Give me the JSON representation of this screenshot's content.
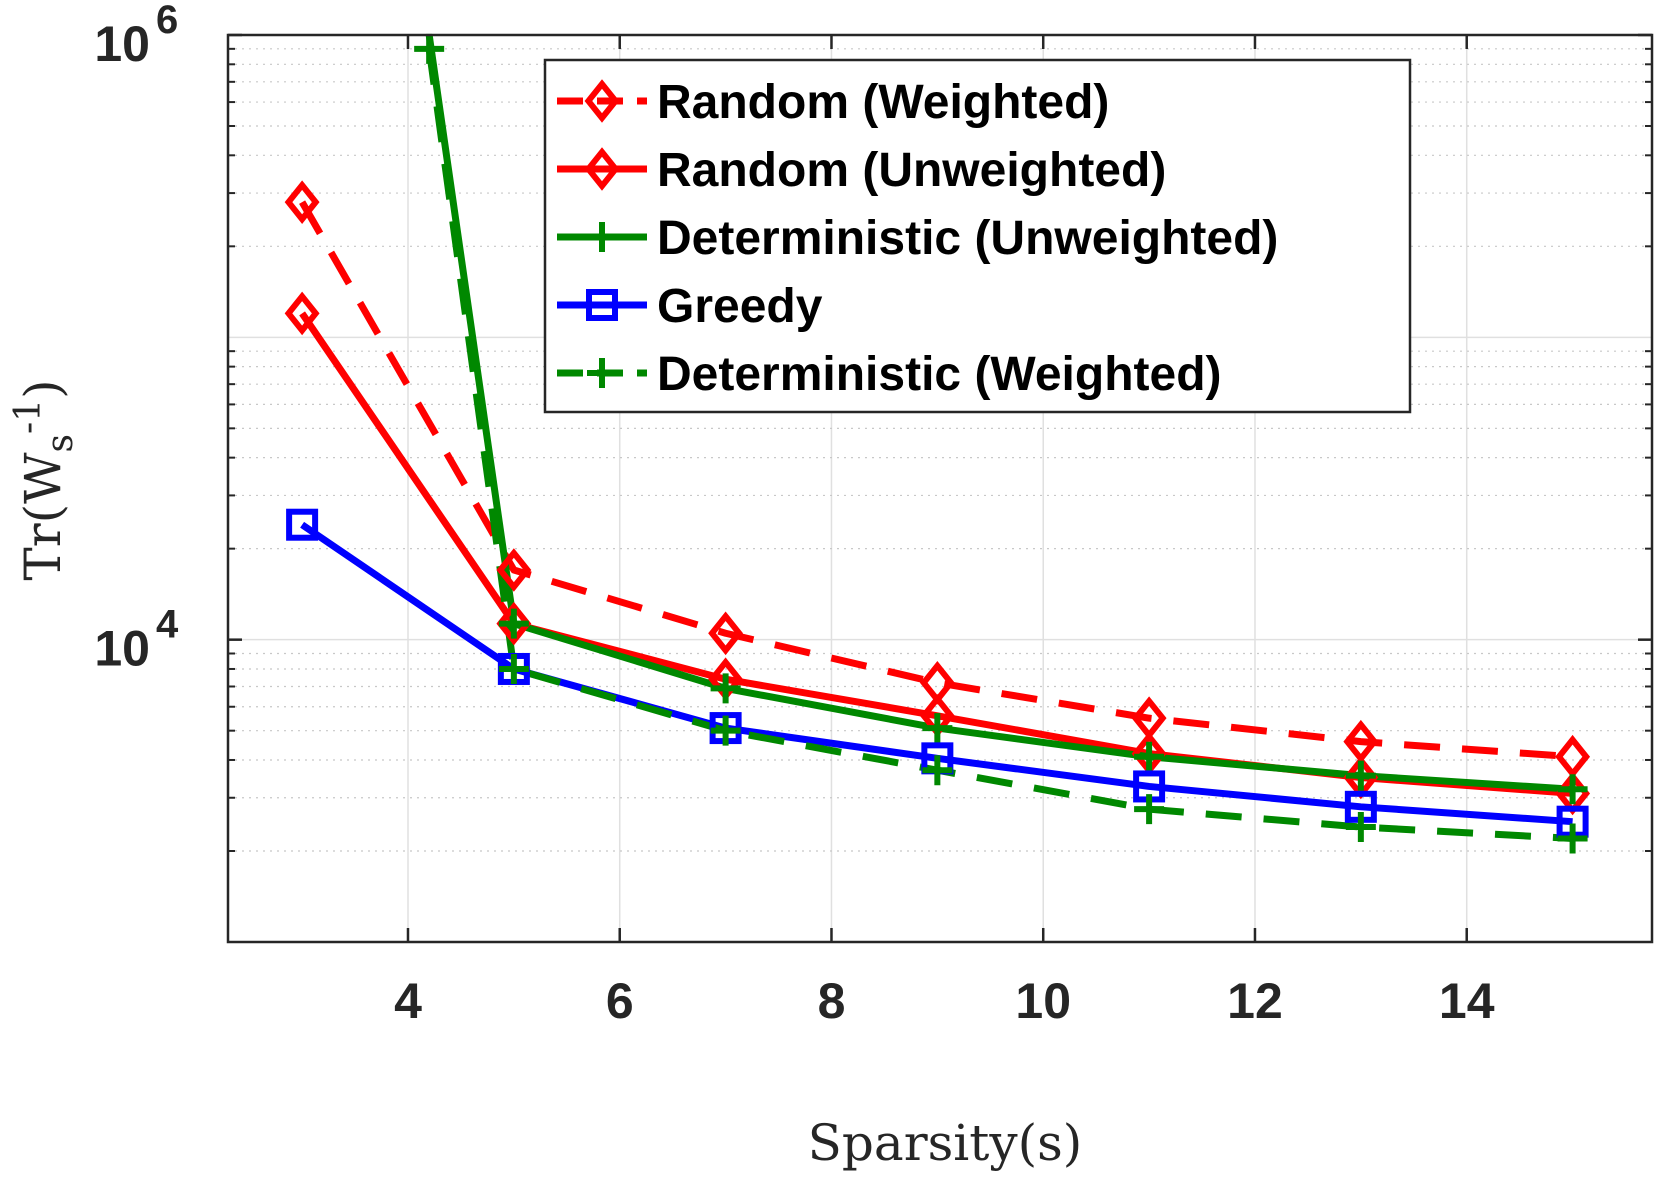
{
  "chart_data": {
    "type": "line",
    "xlabel": "Sparsity(s)",
    "ylabel": "Tr(W_s^{-1})",
    "xlim": [
      2.3,
      15.75
    ],
    "ylim": [
      1000,
      1000000
    ],
    "y_scale": "log",
    "x_ticks": [
      4,
      6,
      8,
      10,
      12,
      14
    ],
    "x_tick_labels": [
      "4",
      "6",
      "8",
      "10",
      "12",
      "14"
    ],
    "y_tick_labels": [
      {
        "value": 1000000,
        "base": "10",
        "exp": "6"
      },
      {
        "value": 10000,
        "base": "10",
        "exp": "4"
      }
    ],
    "grid": true,
    "minor_grid": true,
    "legend_position": "top-right",
    "series": [
      {
        "name": "Random (Weighted)",
        "color": "#ff0000",
        "dash": "dashed",
        "marker": "diamond",
        "x": [
          3,
          5,
          7,
          9,
          11,
          13,
          15
        ],
        "y": [
          280000,
          17000,
          10500,
          7200,
          5500,
          4600,
          4100
        ]
      },
      {
        "name": "Random (Unweighted)",
        "color": "#ff0000",
        "dash": "solid",
        "marker": "diamond",
        "x": [
          3,
          5,
          7,
          9,
          11,
          13,
          15
        ],
        "y": [
          120000,
          11300,
          7400,
          5600,
          4200,
          3500,
          3100
        ]
      },
      {
        "name": "Deterministic (Unweighted)",
        "color": "#008800",
        "dash": "solid",
        "marker": "plus",
        "x": [
          4.2,
          5,
          7,
          9,
          11,
          13,
          15
        ],
        "y": [
          1000000,
          11300,
          6900,
          5100,
          4100,
          3550,
          3200
        ]
      },
      {
        "name": "Greedy",
        "color": "#0000ff",
        "dash": "solid",
        "marker": "square",
        "x": [
          3,
          5,
          7,
          9,
          11,
          13,
          15
        ],
        "y": [
          24000,
          8000,
          5100,
          4050,
          3270,
          2800,
          2500
        ]
      },
      {
        "name": "Deterministic (Weighted)",
        "color": "#008800",
        "dash": "dashed",
        "marker": "plus",
        "x": [
          4.2,
          5,
          7,
          9,
          11,
          13,
          15
        ],
        "y": [
          900000,
          8000,
          5000,
          3700,
          2750,
          2400,
          2200
        ]
      }
    ]
  }
}
